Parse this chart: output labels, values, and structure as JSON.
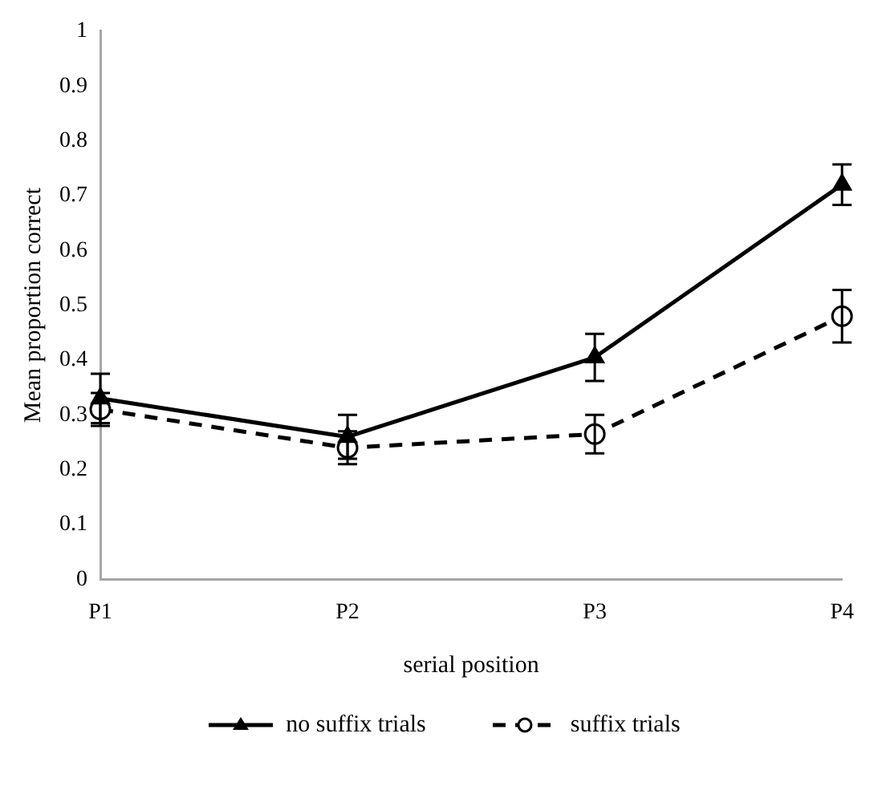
{
  "chart_data": {
    "type": "line",
    "xlabel": "serial position",
    "ylabel": "Mean proportion correct",
    "categories": [
      "P1",
      "P2",
      "P3",
      "P4"
    ],
    "series": [
      {
        "name": "no suffix trials",
        "color": "#000000",
        "marker": "triangle",
        "line_style": "solid",
        "values": [
          0.33,
          0.26,
          0.405,
          0.72
        ],
        "errors": [
          0.045,
          0.04,
          0.043,
          0.037
        ]
      },
      {
        "name": "suffix trials",
        "color": "#000000",
        "marker": "circle",
        "line_style": "dashed",
        "values": [
          0.31,
          0.24,
          0.265,
          0.48
        ],
        "errors": [
          0.03,
          0.03,
          0.035,
          0.048
        ]
      }
    ],
    "ylim": [
      0,
      1
    ],
    "yticks": [
      0,
      0.1,
      0.2,
      0.3,
      0.4,
      0.5,
      0.6,
      0.7,
      0.8,
      0.9,
      1
    ],
    "grid": false,
    "legend": "bottom"
  }
}
